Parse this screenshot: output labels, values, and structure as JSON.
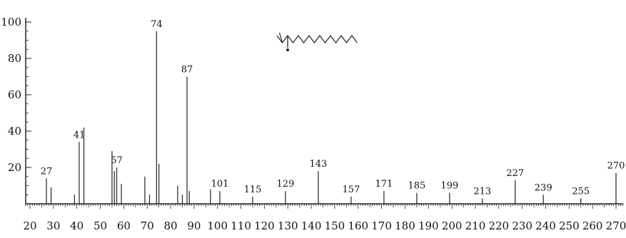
{
  "chart_data": {
    "type": "bar",
    "title": "",
    "xlabel": "",
    "ylabel": "",
    "xlim": [
      18,
      275
    ],
    "ylim": [
      0,
      100
    ],
    "x_ticks": [
      20,
      30,
      40,
      50,
      60,
      70,
      80,
      90,
      100,
      110,
      120,
      130,
      140,
      150,
      160,
      170,
      180,
      190,
      200,
      210,
      220,
      230,
      240,
      250,
      260,
      270
    ],
    "y_ticks": [
      20,
      40,
      60,
      80,
      100
    ],
    "peaks": [
      {
        "x": 27,
        "y": 14
      },
      {
        "x": 29,
        "y": 9
      },
      {
        "x": 39,
        "y": 5
      },
      {
        "x": 41,
        "y": 34
      },
      {
        "x": 43,
        "y": 42
      },
      {
        "x": 55,
        "y": 29
      },
      {
        "x": 56,
        "y": 18
      },
      {
        "x": 57,
        "y": 20
      },
      {
        "x": 59,
        "y": 11
      },
      {
        "x": 69,
        "y": 15
      },
      {
        "x": 71,
        "y": 5
      },
      {
        "x": 74,
        "y": 95
      },
      {
        "x": 75,
        "y": 22
      },
      {
        "x": 83,
        "y": 10
      },
      {
        "x": 85,
        "y": 5
      },
      {
        "x": 87,
        "y": 70
      },
      {
        "x": 88,
        "y": 7
      },
      {
        "x": 97,
        "y": 8
      },
      {
        "x": 101,
        "y": 7
      },
      {
        "x": 115,
        "y": 4
      },
      {
        "x": 129,
        "y": 7
      },
      {
        "x": 143,
        "y": 18
      },
      {
        "x": 157,
        "y": 4
      },
      {
        "x": 171,
        "y": 7
      },
      {
        "x": 185,
        "y": 6
      },
      {
        "x": 199,
        "y": 6
      },
      {
        "x": 213,
        "y": 3
      },
      {
        "x": 227,
        "y": 13
      },
      {
        "x": 239,
        "y": 5
      },
      {
        "x": 255,
        "y": 3
      },
      {
        "x": 270,
        "y": 17
      }
    ],
    "peak_labels": [
      {
        "x": 27,
        "text": "27"
      },
      {
        "x": 41,
        "text": "41"
      },
      {
        "x": 57,
        "text": "57"
      },
      {
        "x": 74,
        "text": "74"
      },
      {
        "x": 87,
        "text": "87"
      },
      {
        "x": 101,
        "text": "101"
      },
      {
        "x": 115,
        "text": "115"
      },
      {
        "x": 129,
        "text": "129"
      },
      {
        "x": 143,
        "text": "143"
      },
      {
        "x": 157,
        "text": "157"
      },
      {
        "x": 171,
        "text": "171"
      },
      {
        "x": 185,
        "text": "185"
      },
      {
        "x": 199,
        "text": "199"
      },
      {
        "x": 213,
        "text": "213"
      },
      {
        "x": 227,
        "text": "227"
      },
      {
        "x": 239,
        "text": "239"
      },
      {
        "x": 255,
        "text": "255"
      },
      {
        "x": 270,
        "text": "270"
      }
    ],
    "grid": false,
    "structure_inset": "methyl-branched long-chain alkyl ester skeletal formula"
  },
  "colors": {
    "axis": "#222222",
    "bars": "#333333",
    "text": "#111111"
  }
}
